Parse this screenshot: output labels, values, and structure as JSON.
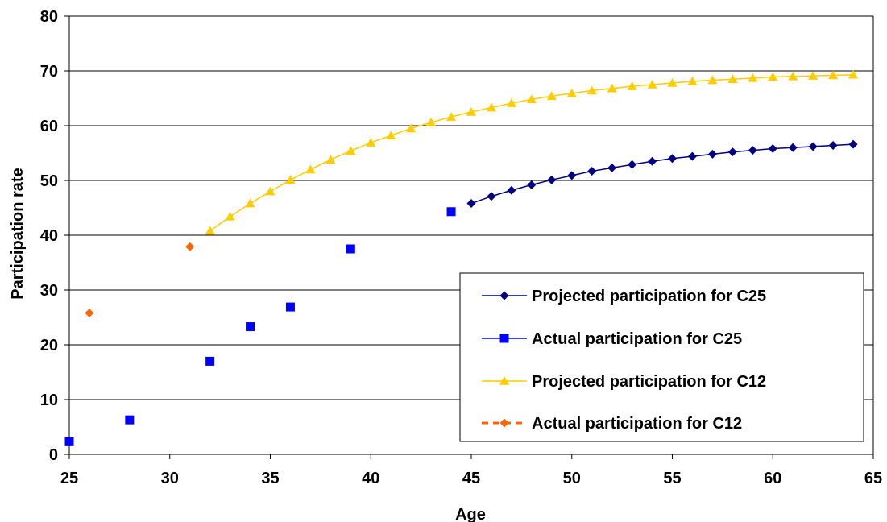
{
  "chart_data": {
    "type": "scatter",
    "xlabel": "Age",
    "ylabel": "Participation rate",
    "xlim": [
      25,
      65
    ],
    "ylim": [
      0,
      80
    ],
    "xticks": [
      25,
      30,
      35,
      40,
      45,
      50,
      55,
      60,
      65
    ],
    "yticks": [
      0,
      10,
      20,
      30,
      40,
      50,
      60,
      70,
      80
    ],
    "grid": "horizontal",
    "legend_position": "bottom-right",
    "series": [
      {
        "name": "Projected participation for C25",
        "style": "line-marker",
        "marker": "diamond",
        "color": "#000080",
        "x": [
          45,
          46,
          47,
          48,
          49,
          50,
          51,
          52,
          53,
          54,
          55,
          56,
          57,
          58,
          59,
          60,
          61,
          62,
          63,
          64
        ],
        "y": [
          45.8,
          47.1,
          48.2,
          49.2,
          50.1,
          50.9,
          51.7,
          52.3,
          52.9,
          53.5,
          54.0,
          54.4,
          54.8,
          55.2,
          55.5,
          55.8,
          56.0,
          56.2,
          56.4,
          56.6
        ]
      },
      {
        "name": "Actual participation for C25",
        "style": "marker",
        "marker": "square",
        "color": "#0000ff",
        "x": [
          25,
          28,
          32,
          34,
          36,
          39,
          44
        ],
        "y": [
          2.3,
          6.3,
          17.0,
          23.3,
          26.9,
          37.5,
          44.3
        ]
      },
      {
        "name": "Projected participation for C12",
        "style": "line-marker",
        "marker": "triangle",
        "color": "#ffcc00",
        "x": [
          32,
          33,
          34,
          35,
          36,
          37,
          38,
          39,
          40,
          41,
          42,
          43,
          44,
          45,
          46,
          47,
          48,
          49,
          50,
          51,
          52,
          53,
          54,
          55,
          56,
          57,
          58,
          59,
          60,
          61,
          62,
          63,
          64
        ],
        "y": [
          40.8,
          43.4,
          45.8,
          48.0,
          50.1,
          52.0,
          53.8,
          55.4,
          56.9,
          58.2,
          59.5,
          60.6,
          61.6,
          62.5,
          63.3,
          64.1,
          64.8,
          65.4,
          65.9,
          66.4,
          66.8,
          67.2,
          67.5,
          67.8,
          68.1,
          68.3,
          68.5,
          68.7,
          68.9,
          69.0,
          69.1,
          69.2,
          69.3
        ]
      },
      {
        "name": "Actual participation for C12",
        "style": "marker",
        "marker": "diamond",
        "color": "#ff6600",
        "x": [
          26,
          31
        ],
        "y": [
          25.8,
          37.9
        ]
      }
    ]
  }
}
